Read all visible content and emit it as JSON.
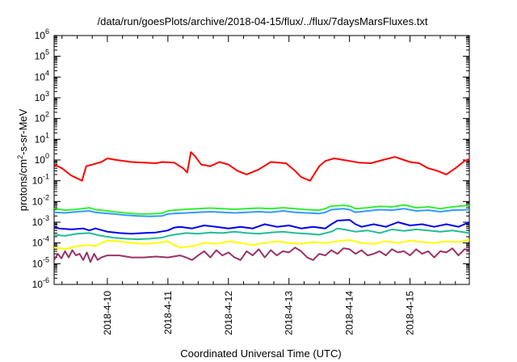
{
  "chart_data": {
    "type": "line",
    "title": "/data/run/goesPlots/archive/2018-04-15/flux/../flux/7daysMarsFluxes.txt",
    "xlabel": "Coordinated Universal Time (UTC)",
    "ylabel": "protons/cm2-s-sr-MeV",
    "ylabel_parts": {
      "base": "protons/cm",
      "sup": "2",
      "rest": "-s-sr-MeV"
    },
    "x_tick_labels": [
      "2018-4-10",
      "2018-4-11",
      "2018-4-12",
      "2018-4-13",
      "2018-4-14",
      "2018-4-15"
    ],
    "x_range_days": [
      -0.88,
      5.98
    ],
    "y_scale": "log",
    "ylim": [
      1e-06,
      1000000.0
    ],
    "y_tick_labels": [
      {
        "base": "10",
        "exp": "6"
      },
      {
        "base": "10",
        "exp": "5"
      },
      {
        "base": "10",
        "exp": "4"
      },
      {
        "base": "10",
        "exp": "3"
      },
      {
        "base": "10",
        "exp": "2"
      },
      {
        "base": "10",
        "exp": "1"
      },
      {
        "base": "10",
        "exp": "0"
      },
      {
        "base": "10",
        "exp": "-1"
      },
      {
        "base": "10",
        "exp": "-2"
      },
      {
        "base": "10",
        "exp": "-3"
      },
      {
        "base": "10",
        "exp": "-4"
      },
      {
        "base": "10",
        "exp": "-5"
      },
      {
        "base": "10",
        "exp": "-6"
      }
    ],
    "grid": false,
    "legend": "none",
    "series": [
      {
        "color": "#ff0000",
        "x": [
          -0.88,
          -0.75,
          -0.6,
          -0.5,
          -0.42,
          -0.35,
          -0.25,
          -0.1,
          0.0,
          0.15,
          0.4,
          0.8,
          0.9,
          1.1,
          1.25,
          1.32,
          1.38,
          1.45,
          1.55,
          1.7,
          1.85,
          2.0,
          2.15,
          2.3,
          2.5,
          2.7,
          2.95,
          3.1,
          3.2,
          3.35,
          3.5,
          3.6,
          3.75,
          3.9,
          4.0,
          4.15,
          4.35,
          4.55,
          4.75,
          4.9,
          5.0,
          5.15,
          5.3,
          5.45,
          5.6,
          5.75,
          5.9,
          5.98
        ],
        "y": [
          0.6,
          0.4,
          0.18,
          0.13,
          0.1,
          0.5,
          0.6,
          0.8,
          1.2,
          1.0,
          0.8,
          0.7,
          0.8,
          0.75,
          0.4,
          0.25,
          2.4,
          1.5,
          0.6,
          0.5,
          0.8,
          0.6,
          0.3,
          0.2,
          0.35,
          0.8,
          0.7,
          0.3,
          0.15,
          0.1,
          0.5,
          0.9,
          1.2,
          1.0,
          0.9,
          0.75,
          0.7,
          1.0,
          1.4,
          1.0,
          0.8,
          0.7,
          0.4,
          0.3,
          0.2,
          0.4,
          0.9,
          1.1
        ]
      },
      {
        "color": "#33ee33",
        "x": [
          -0.88,
          -0.7,
          -0.5,
          -0.3,
          -0.2,
          -0.1,
          0.1,
          0.3,
          0.5,
          0.7,
          0.9,
          1.0,
          1.1,
          1.3,
          1.5,
          1.7,
          1.9,
          2.1,
          2.3,
          2.5,
          2.7,
          2.9,
          3.1,
          3.3,
          3.5,
          3.6,
          3.7,
          3.9,
          4.0,
          4.1,
          4.3,
          4.5,
          4.7,
          4.9,
          5.1,
          5.3,
          5.5,
          5.7,
          5.98
        ],
        "y": [
          0.0045,
          0.0038,
          0.0042,
          0.005,
          0.004,
          0.0038,
          0.0032,
          0.0028,
          0.0025,
          0.0025,
          0.0027,
          0.0035,
          0.0038,
          0.0042,
          0.0045,
          0.0048,
          0.0045,
          0.0042,
          0.0045,
          0.0048,
          0.0045,
          0.005,
          0.0045,
          0.004,
          0.0038,
          0.0045,
          0.006,
          0.0065,
          0.006,
          0.0045,
          0.005,
          0.0058,
          0.0055,
          0.0068,
          0.005,
          0.0055,
          0.0045,
          0.0055,
          0.0065
        ]
      },
      {
        "color": "#3399ff",
        "x": [
          -0.88,
          -0.7,
          -0.5,
          -0.3,
          -0.2,
          -0.1,
          0.1,
          0.3,
          0.5,
          0.7,
          0.9,
          1.0,
          1.1,
          1.3,
          1.5,
          1.7,
          1.9,
          2.1,
          2.3,
          2.5,
          2.7,
          2.9,
          3.1,
          3.3,
          3.5,
          3.6,
          3.7,
          3.9,
          4.0,
          4.1,
          4.3,
          4.5,
          4.7,
          4.9,
          5.1,
          5.3,
          5.5,
          5.7,
          5.98
        ],
        "y": [
          0.003,
          0.0028,
          0.0032,
          0.0035,
          0.003,
          0.0028,
          0.0025,
          0.0022,
          0.002,
          0.0019,
          0.002,
          0.0025,
          0.0026,
          0.0028,
          0.003,
          0.0032,
          0.003,
          0.0028,
          0.003,
          0.0032,
          0.003,
          0.0035,
          0.003,
          0.0028,
          0.0026,
          0.003,
          0.004,
          0.0045,
          0.004,
          0.003,
          0.0035,
          0.004,
          0.0038,
          0.0045,
          0.0035,
          0.0038,
          0.0032,
          0.0038,
          0.004
        ]
      },
      {
        "color": "#0000ee",
        "x": [
          -0.88,
          -0.8,
          -0.6,
          -0.4,
          -0.3,
          -0.2,
          0.0,
          0.2,
          0.4,
          0.6,
          0.8,
          1.0,
          1.1,
          1.2,
          1.4,
          1.6,
          1.8,
          2.0,
          2.2,
          2.4,
          2.6,
          2.8,
          3.0,
          3.2,
          3.4,
          3.6,
          3.7,
          3.8,
          4.0,
          4.1,
          4.2,
          4.4,
          4.6,
          4.8,
          5.0,
          5.2,
          5.4,
          5.6,
          5.8,
          5.98
        ],
        "y": [
          0.0006,
          0.0005,
          0.00045,
          0.0005,
          0.0004,
          0.0005,
          0.00035,
          0.0003,
          0.00028,
          0.0003,
          0.00032,
          0.0004,
          0.00055,
          0.0006,
          0.0005,
          0.0007,
          0.0006,
          0.0005,
          0.0006,
          0.0005,
          0.0008,
          0.0006,
          0.0007,
          0.0005,
          0.0006,
          0.0005,
          0.0008,
          0.0012,
          0.0013,
          0.0008,
          0.0006,
          0.0008,
          0.0006,
          0.001,
          0.0007,
          0.0008,
          0.0006,
          0.0008,
          0.0006,
          0.001
        ]
      },
      {
        "color": "#22bb99",
        "x": [
          -0.88,
          -0.7,
          -0.5,
          -0.3,
          -0.1,
          0.1,
          0.3,
          0.5,
          0.7,
          0.9,
          1.0,
          1.1,
          1.3,
          1.5,
          1.7,
          1.9,
          2.1,
          2.3,
          2.5,
          2.7,
          2.9,
          3.1,
          3.3,
          3.5,
          3.7,
          3.8,
          3.9,
          4.1,
          4.3,
          4.5,
          4.7,
          4.9,
          5.1,
          5.3,
          5.5,
          5.7,
          5.98
        ],
        "y": [
          0.00025,
          0.00022,
          0.00028,
          0.0003,
          0.00022,
          0.00018,
          0.00016,
          0.00015,
          0.00016,
          0.00018,
          0.00022,
          0.00025,
          0.0003,
          0.00028,
          0.00032,
          0.0003,
          0.00035,
          0.0003,
          0.00028,
          0.00032,
          0.00035,
          0.0003,
          0.00028,
          0.00025,
          0.00035,
          0.0005,
          0.00045,
          0.00035,
          0.0004,
          0.0003,
          0.00045,
          0.00038,
          0.00045,
          0.0004,
          0.00035,
          0.0004,
          0.0003
        ]
      },
      {
        "color": "#ffff00",
        "x": [
          -0.88,
          -0.7,
          -0.5,
          -0.3,
          -0.2,
          -0.1,
          0.0,
          0.2,
          0.4,
          0.6,
          0.8,
          1.0,
          1.1,
          1.2,
          1.4,
          1.6,
          1.8,
          2.0,
          2.2,
          2.4,
          2.6,
          2.8,
          3.0,
          3.2,
          3.4,
          3.6,
          3.8,
          4.0,
          4.2,
          4.4,
          4.6,
          4.8,
          5.0,
          5.2,
          5.4,
          5.6,
          5.8,
          5.98
        ],
        "y": [
          6e-05,
          5e-05,
          7e-05,
          8e-05,
          7e-05,
          0.0001,
          0.00013,
          0.00012,
          0.0001,
          9e-05,
          0.0001,
          0.00012,
          8e-05,
          6e-05,
          7e-05,
          0.0001,
          9e-05,
          0.00012,
          0.0001,
          8e-05,
          0.0001,
          0.00012,
          0.0001,
          9e-05,
          0.00011,
          0.0001,
          0.00012,
          0.00014,
          0.0001,
          9e-05,
          0.00012,
          0.0001,
          0.00013,
          0.00011,
          0.0001,
          0.00012,
          0.00011,
          0.00014
        ]
      },
      {
        "color": "#993366",
        "x": [
          -0.88,
          -0.82,
          -0.76,
          -0.7,
          -0.64,
          -0.58,
          -0.52,
          -0.46,
          -0.4,
          -0.34,
          -0.28,
          -0.22,
          -0.16,
          -0.1,
          0.0,
          0.2,
          0.4,
          0.6,
          0.8,
          1.0,
          1.2,
          1.3,
          1.4,
          1.5,
          1.6,
          1.7,
          1.8,
          1.9,
          2.0,
          2.1,
          2.2,
          2.3,
          2.4,
          2.5,
          2.6,
          2.7,
          2.8,
          2.9,
          3.0,
          3.1,
          3.2,
          3.3,
          3.4,
          3.5,
          3.6,
          3.7,
          3.8,
          3.9,
          4.0,
          4.1,
          4.2,
          4.3,
          4.4,
          4.5,
          4.6,
          4.7,
          4.8,
          4.9,
          5.0,
          5.1,
          5.2,
          5.3,
          5.4,
          5.5,
          5.6,
          5.7,
          5.8,
          5.9,
          5.98
        ],
        "y": [
          1.5e-05,
          3e-05,
          1.8e-05,
          4e-05,
          2e-05,
          4.5e-05,
          2.5e-05,
          3e-05,
          1.5e-05,
          3.5e-05,
          1.2e-05,
          3e-05,
          1.5e-05,
          2e-05,
          2.5e-05,
          2.5e-05,
          2e-05,
          2e-05,
          2.2e-05,
          2e-05,
          2.5e-05,
          2e-05,
          1.5e-05,
          2.5e-05,
          4e-05,
          2e-05,
          4.5e-05,
          2.5e-05,
          3.5e-05,
          2e-05,
          1.5e-05,
          4e-05,
          2.5e-05,
          5e-05,
          2e-05,
          4.5e-05,
          2.5e-05,
          4e-05,
          3.5e-05,
          6e-05,
          4e-05,
          2e-05,
          1.5e-05,
          3e-05,
          2.5e-05,
          4.5e-05,
          3e-05,
          5.5e-05,
          5e-05,
          3e-05,
          4.5e-05,
          2.5e-05,
          3e-05,
          4e-05,
          2.5e-05,
          5e-05,
          3.5e-05,
          4e-05,
          2.5e-05,
          5e-05,
          3e-05,
          4e-05,
          2e-05,
          4e-05,
          3.5e-05,
          5.5e-05,
          2.5e-05,
          5e-05,
          4.5e-05
        ]
      }
    ]
  }
}
